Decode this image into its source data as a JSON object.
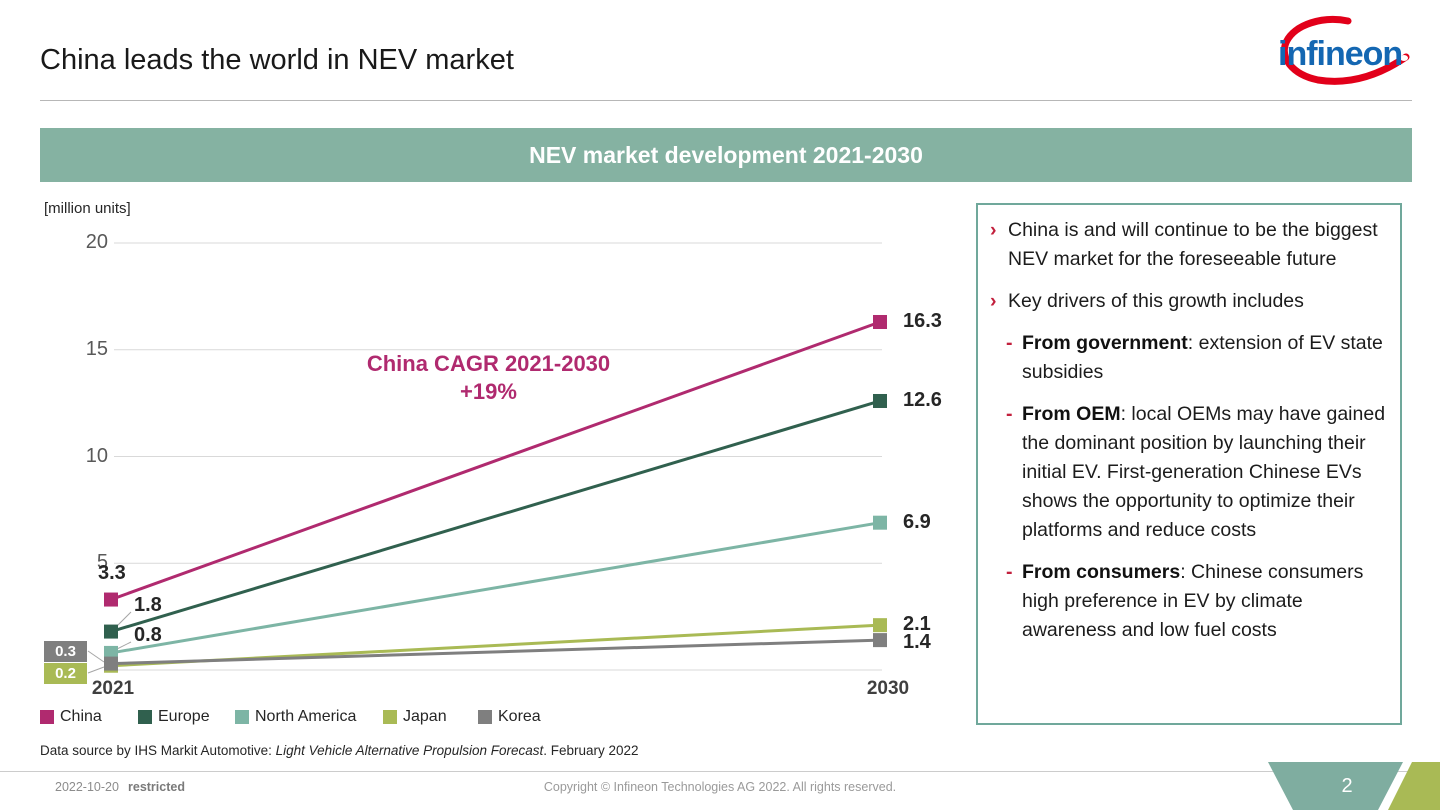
{
  "slide": {
    "title": "China leads the world in NEV market",
    "page_number": "2",
    "logo_text": "infineon",
    "footer": {
      "date": "2022-10-20",
      "classification": "restricted",
      "copyright": "Copyright © Infineon Technologies AG 2022. All rights reserved."
    },
    "data_source": {
      "prefix": "Data source by IHS Markit Automotive: ",
      "italic": "Light Vehicle Alternative Propulsion Forecast",
      "suffix": ". February 2022"
    }
  },
  "banner": {
    "title": "NEV market development 2021-2030",
    "bg_color": "#85b2a2"
  },
  "chart_data": {
    "type": "line",
    "title": "NEV market development 2021-2030",
    "unit_label": "[million units]",
    "categories": [
      "2021",
      "2030"
    ],
    "ylim": [
      0,
      20
    ],
    "yticks": [
      5,
      10,
      15,
      20
    ],
    "grid": true,
    "legend_position": "bottom",
    "marker_shape": "square",
    "annotation": {
      "line1": "China CAGR 2021-2030",
      "line2": "+19%",
      "color": "#b02a6f"
    },
    "series": [
      {
        "name": "China",
        "color": "#b02a6f",
        "values": [
          3.3,
          16.3
        ]
      },
      {
        "name": "Europe",
        "color": "#30604e",
        "values": [
          1.8,
          12.6
        ]
      },
      {
        "name": "North America",
        "color": "#7db5a5",
        "values": [
          0.8,
          6.9
        ]
      },
      {
        "name": "Japan",
        "color": "#a9ba55",
        "values": [
          0.2,
          2.1
        ]
      },
      {
        "name": "Korea",
        "color": "#7f7f7f",
        "values": [
          0.3,
          1.4
        ]
      }
    ]
  },
  "panel": {
    "border_color": "#70a89b",
    "bullets": [
      {
        "type": "arrow",
        "marker": "›",
        "bold": "",
        "text": "China is and will continue to be the biggest NEV market for the foreseeable future"
      },
      {
        "type": "arrow",
        "marker": "›",
        "bold": "",
        "text": "Key drivers of this growth includes"
      },
      {
        "type": "dash",
        "marker": "-",
        "bold": "From government",
        "text": ": extension of EV state subsidies"
      },
      {
        "type": "dash",
        "marker": "-",
        "bold": "From OEM",
        "text": ": local OEMs may have gained the dominant position by launching their initial EV. First-generation Chinese EVs shows the opportunity to optimize their platforms and reduce costs"
      },
      {
        "type": "dash",
        "marker": "-",
        "bold": "From consumers",
        "text": ": Chinese consumers high preference in EV by climate awareness and low fuel costs"
      }
    ]
  },
  "colors": {
    "accent_red": "#c2203d",
    "corner_teal": "#7fada0",
    "corner_olive": "#a9ba55",
    "logo_blue": "#1467b2",
    "logo_red": "#e2001a",
    "gridline": "#d9d9d9"
  }
}
